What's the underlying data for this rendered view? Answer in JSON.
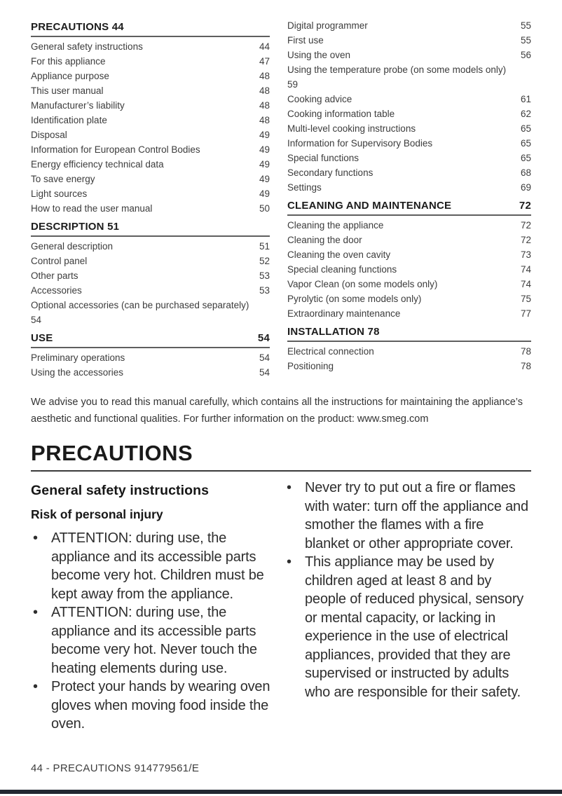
{
  "toc": {
    "left": [
      {
        "title": "PRECAUTIONS 44",
        "page": "",
        "entries": [
          {
            "label": "General safety instructions",
            "page": "44"
          },
          {
            "label": "For this appliance",
            "page": "47"
          },
          {
            "label": "Appliance purpose",
            "page": "48"
          },
          {
            "label": "This user manual",
            "page": "48"
          },
          {
            "label": "Manufacturer’s liability",
            "page": "48"
          },
          {
            "label": "Identification plate",
            "page": "48"
          },
          {
            "label": "Disposal",
            "page": "49"
          },
          {
            "label": "Information for European Control Bodies",
            "page": "49"
          },
          {
            "label": "Energy efficiency technical data",
            "page": "49"
          },
          {
            "label": "To save energy",
            "page": "49"
          },
          {
            "label": "Light sources",
            "page": "49"
          },
          {
            "label": "How to read the user manual",
            "page": "50"
          }
        ]
      },
      {
        "title": "DESCRIPTION 51",
        "page": "",
        "entries": [
          {
            "label": "General description",
            "page": "51"
          },
          {
            "label": "Control panel",
            "page": "52"
          },
          {
            "label": "Other parts",
            "page": "53"
          },
          {
            "label": "Accessories",
            "page": "53"
          },
          {
            "label": "Optional accessories (can be purchased separately)",
            "page": "54",
            "wrap": true
          }
        ]
      },
      {
        "title": "USE",
        "page": "54",
        "entries": [
          {
            "label": "Preliminary operations",
            "page": "54"
          },
          {
            "label": "Using the accessories",
            "page": "54"
          }
        ]
      }
    ],
    "right": [
      {
        "title": "",
        "page": "",
        "entries": [
          {
            "label": "Digital programmer",
            "page": "55"
          },
          {
            "label": "First use",
            "page": "55"
          },
          {
            "label": "Using the oven",
            "page": "56"
          },
          {
            "label": "Using the temperature probe (on some models only)",
            "page": "59",
            "wrap": true
          },
          {
            "label": "Cooking advice",
            "page": "61"
          },
          {
            "label": "Cooking information table",
            "page": "62"
          },
          {
            "label": "Multi-level cooking instructions",
            "page": "65"
          },
          {
            "label": "Information for Supervisory Bodies",
            "page": "65"
          },
          {
            "label": "Special functions",
            "page": "65"
          },
          {
            "label": "Secondary functions",
            "page": "68"
          },
          {
            "label": "Settings",
            "page": "69"
          }
        ]
      },
      {
        "title": "CLEANING AND MAINTENANCE",
        "page": "72",
        "entries": [
          {
            "label": "Cleaning the appliance",
            "page": "72"
          },
          {
            "label": "Cleaning the door",
            "page": "72"
          },
          {
            "label": "Cleaning the oven cavity",
            "page": "73"
          },
          {
            "label": "Special cleaning functions",
            "page": "74"
          },
          {
            "label": "Vapor Clean (on some models only)",
            "page": "74"
          },
          {
            "label": "Pyrolytic (on some models only)",
            "page": "75"
          },
          {
            "label": "Extraordinary maintenance",
            "page": "77"
          }
        ]
      },
      {
        "title": "INSTALLATION 78",
        "page": "",
        "entries": [
          {
            "label": "Electrical connection",
            "page": "78"
          },
          {
            "label": "Positioning",
            "page": "78"
          }
        ]
      }
    ]
  },
  "advisory": "We advise you to read this manual carefully, which contains all the instructions for maintaining the appliance’s aesthetic and functional qualities. For further information on the product: www.smeg.com",
  "section": {
    "title": "PRECAUTIONS",
    "left": {
      "heading": "General safety instructions",
      "subheading": "Risk of personal injury",
      "bullets": [
        "ATTENTION: during use, the appliance and its accessible parts become very hot. Children must be kept away from the appliance.",
        "ATTENTION: during use, the appliance and its accessible parts become very hot. Never touch the heating elements during use.",
        "Protect your hands by wearing oven gloves when moving food inside the oven."
      ]
    },
    "right": {
      "bullets": [
        "Never try to put out a fire or flames with water: turn off the appliance and smother the flames with a fire blanket or other appropriate cover.",
        "This appliance may be used by children aged at least 8 and by people of reduced physical, sensory or mental capacity, or lacking in experience in the use of electrical appliances, provided that they are supervised or instructed by adults who are responsible for their safety."
      ]
    }
  },
  "footer": "44 - PRECAUTIONS 914779561/E"
}
